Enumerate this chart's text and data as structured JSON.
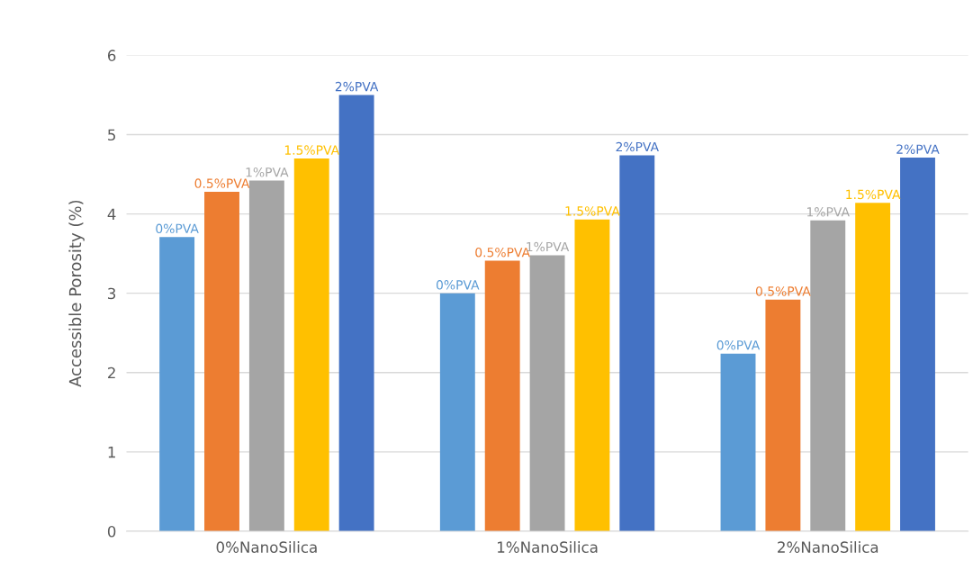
{
  "chart_data": {
    "type": "bar",
    "ylabel": "Accessible Porosity (%)",
    "categories": [
      "0%NanoSilica",
      "1%NanoSilica",
      "2%NanoSilica"
    ],
    "series": [
      {
        "name": "0%PVA",
        "color": "#5b9bd5",
        "values": [
          3.71,
          3.0,
          2.24
        ]
      },
      {
        "name": "0.5%PVA",
        "color": "#ed7d31",
        "values": [
          4.28,
          3.41,
          2.92
        ]
      },
      {
        "name": "1%PVA",
        "color": "#a5a5a5",
        "values": [
          4.42,
          3.48,
          3.92
        ]
      },
      {
        "name": "1.5%PVA",
        "color": "#ffc000",
        "values": [
          4.7,
          3.93,
          4.14
        ]
      },
      {
        "name": "2%PVA",
        "color": "#4472c4",
        "values": [
          5.5,
          4.74,
          4.71
        ]
      }
    ],
    "ylim": [
      0,
      6
    ],
    "yticks": [
      0,
      1,
      2,
      3,
      4,
      5,
      6
    ],
    "grid": "y",
    "legend": false
  }
}
